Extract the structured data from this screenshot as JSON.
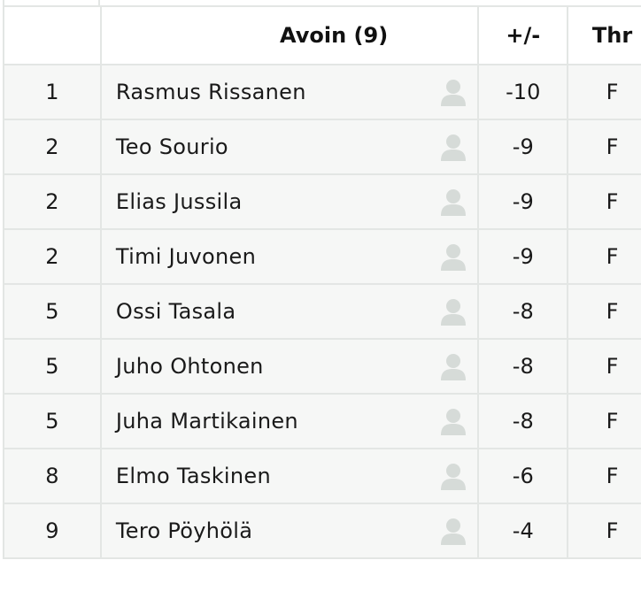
{
  "table": {
    "header": {
      "division": "Avoin (9)",
      "plus_minus": "+/-",
      "thr": "Thr"
    },
    "rows": [
      {
        "position": "1",
        "name": "Rasmus Rissanen",
        "plus_minus": "-10",
        "thr": "F",
        "avatar_icon": "user-placeholder-icon"
      },
      {
        "position": "2",
        "name": "Teo Sourio",
        "plus_minus": "-9",
        "thr": "F",
        "avatar_icon": "user-placeholder-icon"
      },
      {
        "position": "2",
        "name": "Elias Jussila",
        "plus_minus": "-9",
        "thr": "F",
        "avatar_icon": "user-placeholder-icon"
      },
      {
        "position": "2",
        "name": "Timi Juvonen",
        "plus_minus": "-9",
        "thr": "F",
        "avatar_icon": "user-placeholder-icon"
      },
      {
        "position": "5",
        "name": "Ossi Tasala",
        "plus_minus": "-8",
        "thr": "F",
        "avatar_icon": "user-placeholder-icon"
      },
      {
        "position": "5",
        "name": "Juho Ohtonen",
        "plus_minus": "-8",
        "thr": "F",
        "avatar_icon": "user-placeholder-icon"
      },
      {
        "position": "5",
        "name": "Juha Martikainen",
        "plus_minus": "-8",
        "thr": "F",
        "avatar_icon": "user-placeholder-icon"
      },
      {
        "position": "8",
        "name": "Elmo Taskinen",
        "plus_minus": "-6",
        "thr": "F",
        "avatar_icon": "user-placeholder-icon"
      },
      {
        "position": "9",
        "name": "Tero Pöyhölä",
        "plus_minus": "-4",
        "thr": "F",
        "avatar_icon": "user-placeholder-icon"
      }
    ]
  },
  "colors": {
    "border": "#e3e6e4",
    "row_background": "#f6f7f6",
    "header_background": "#ffffff",
    "avatar": "#d6dbd8",
    "thr_text": "#9aa09d"
  }
}
